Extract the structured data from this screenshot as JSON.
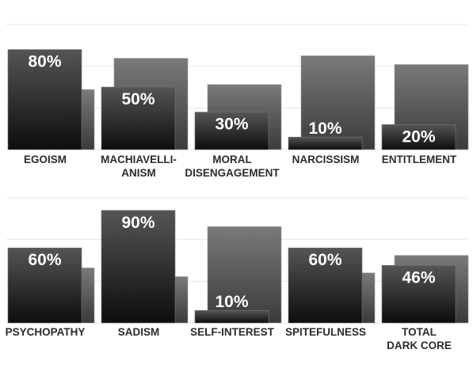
{
  "chart_data": [
    {
      "type": "bar",
      "categories": [
        "EGOISM",
        "MACHIAVELLI-|ANISM",
        "MORAL|DISENGAGEMENT",
        "NARCISSISM",
        "ENTITLEMENT"
      ],
      "series": [
        {
          "values": [
            48,
            73,
            52,
            75,
            68
          ]
        },
        {
          "values": [
            80,
            50,
            30,
            10,
            20
          ]
        }
      ],
      "value_labels": [
        "80%",
        "50%",
        "30%",
        "10%",
        "20%"
      ],
      "ylim": [
        0,
        100
      ],
      "grid": true,
      "colors": {
        "back": "#5e5e5e",
        "front": "#3a3a3a",
        "grid": "#e6e6e6"
      }
    },
    {
      "type": "bar",
      "categories": [
        "PSYCHOPATHY",
        "SADISM",
        "SELF-INTEREST",
        "SPITEFULNESS",
        "TOTAL|DARK CORE"
      ],
      "series": [
        {
          "values": [
            44,
            37,
            77,
            40,
            54
          ]
        },
        {
          "values": [
            60,
            90,
            10,
            60,
            46
          ]
        }
      ],
      "value_labels": [
        "60%",
        "90%",
        "10%",
        "60%",
        "46%"
      ],
      "ylim": [
        0,
        100
      ],
      "grid": true,
      "colors": {
        "back": "#5e5e5e",
        "front": "#3a3a3a",
        "grid": "#e6e6e6"
      }
    }
  ]
}
